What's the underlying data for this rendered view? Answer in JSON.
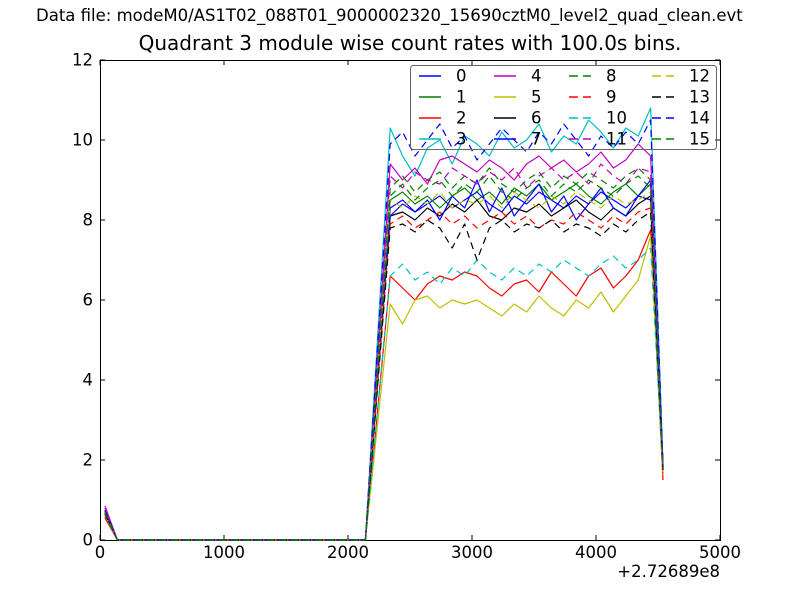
{
  "header": {
    "datafile": "Data file: modeM0/AS1T02_088T01_9000002320_15690cztM0_level2_quad_clean.evt"
  },
  "chart_data": {
    "type": "line",
    "title": "Quadrant 3 module wise count rates with 100.0s bins.",
    "xlabel": "",
    "ylabel": "",
    "x_offset_label": "+2.72689e8",
    "xlim": [
      0,
      5000
    ],
    "ylim": [
      0,
      12
    ],
    "xticks": [
      0,
      1000,
      2000,
      3000,
      4000,
      5000
    ],
    "yticks": [
      0,
      2,
      4,
      6,
      8,
      10,
      12
    ],
    "grid": false,
    "bin_seconds": 100,
    "legend_position": "upper right",
    "legend_columns": 4,
    "axis_color": "#000000",
    "legend_border_color": "#666666",
    "x_bins": {
      "spike_x": 40,
      "zero_start_x": 140,
      "zero_end_x": 2140,
      "zero_step": 100,
      "rise_x": 2240,
      "plateau_start_x": 2340,
      "plateau_step": 100,
      "end_x": 4540
    },
    "series": [
      {
        "label": "0",
        "color": "#0000ff",
        "dashed": false,
        "spike_y": 0.75,
        "end_y": 1.8,
        "plateau_y": [
          8.3,
          8.5,
          8.2,
          8.4,
          8.6,
          8.3,
          8.5,
          8.7,
          8.4,
          8.2,
          8.6,
          8.4,
          8.7,
          8.5,
          8.3,
          8.6,
          8.4,
          8.7,
          8.5,
          8.3,
          8.6,
          8.5
        ]
      },
      {
        "label": "1",
        "color": "#008000",
        "dashed": false,
        "spike_y": 0.7,
        "end_y": 1.85,
        "plateau_y": [
          8.5,
          8.7,
          8.4,
          8.6,
          8.3,
          8.6,
          8.8,
          8.5,
          8.7,
          8.4,
          8.8,
          8.6,
          8.9,
          8.5,
          8.7,
          8.9,
          8.6,
          8.4,
          8.7,
          8.9,
          8.6,
          8.9
        ]
      },
      {
        "label": "2",
        "color": "#ff0000",
        "dashed": false,
        "spike_y": 0.55,
        "end_y": 1.5,
        "plateau_y": [
          6.6,
          6.3,
          6.0,
          6.4,
          6.6,
          6.5,
          6.7,
          6.6,
          6.3,
          6.1,
          6.4,
          6.5,
          6.2,
          6.7,
          6.4,
          6.1,
          6.6,
          6.8,
          6.3,
          6.6,
          7.0,
          7.75
        ]
      },
      {
        "label": "3",
        "color": "#00bfbf",
        "dashed": false,
        "spike_y": 0.8,
        "end_y": 1.9,
        "plateau_y": [
          10.3,
          9.6,
          9.1,
          9.8,
          10.0,
          9.4,
          10.1,
          9.9,
          9.6,
          10.2,
          9.8,
          10.0,
          10.4,
          9.7,
          10.1,
          9.9,
          10.5,
          10.2,
          9.8,
          10.3,
          10.1,
          10.8
        ]
      },
      {
        "label": "4",
        "color": "#bf00bf",
        "dashed": false,
        "spike_y": 0.85,
        "end_y": 1.85,
        "plateau_y": [
          9.4,
          9.0,
          9.3,
          8.9,
          9.5,
          9.6,
          9.4,
          9.2,
          9.5,
          9.3,
          9.0,
          9.4,
          9.6,
          9.3,
          9.5,
          9.2,
          9.4,
          9.7,
          9.3,
          9.5,
          9.9,
          9.6
        ]
      },
      {
        "label": "5",
        "color": "#bfbf00",
        "dashed": false,
        "spike_y": 0.6,
        "end_y": 1.65,
        "plateau_y": [
          5.9,
          5.4,
          6.0,
          6.1,
          5.8,
          6.0,
          5.9,
          6.0,
          5.8,
          5.6,
          5.9,
          5.7,
          6.1,
          5.8,
          5.6,
          6.0,
          5.8,
          6.2,
          5.7,
          6.1,
          6.5,
          7.6
        ]
      },
      {
        "label": "6",
        "color": "#000000",
        "dashed": false,
        "spike_y": 0.65,
        "end_y": 1.8,
        "plateau_y": [
          8.1,
          8.2,
          8.0,
          8.3,
          8.1,
          8.4,
          8.2,
          8.5,
          8.1,
          8.0,
          8.3,
          8.2,
          8.4,
          8.1,
          8.3,
          8.5,
          8.2,
          8.0,
          8.3,
          8.1,
          8.4,
          8.6
        ]
      },
      {
        "label": "7",
        "color": "#0000ff",
        "dashed": false,
        "spike_y": 0.72,
        "end_y": 1.8,
        "plateau_y": [
          8.1,
          8.4,
          8.2,
          8.5,
          8.0,
          8.6,
          8.3,
          9.0,
          8.2,
          8.8,
          8.1,
          8.5,
          8.9,
          8.2,
          8.6,
          8.0,
          8.4,
          8.8,
          8.3,
          8.1,
          8.6,
          9.0
        ]
      },
      {
        "label": "8",
        "color": "#008000",
        "dashed": true,
        "spike_y": 0.68,
        "end_y": 1.85,
        "plateau_y": [
          8.8,
          9.1,
          8.7,
          9.0,
          9.2,
          8.8,
          9.1,
          8.9,
          9.3,
          8.9,
          8.7,
          9.0,
          9.2,
          8.8,
          9.1,
          8.9,
          9.2,
          9.0,
          8.8,
          9.1,
          9.3,
          9.0
        ]
      },
      {
        "label": "9",
        "color": "#ff0000",
        "dashed": true,
        "spike_y": 0.58,
        "end_y": 1.6,
        "plateau_y": [
          7.9,
          8.1,
          7.8,
          8.0,
          8.2,
          7.9,
          8.1,
          7.8,
          8.0,
          8.2,
          7.9,
          8.1,
          7.8,
          8.0,
          7.9,
          8.2,
          8.0,
          7.8,
          8.1,
          7.9,
          8.2,
          8.3
        ]
      },
      {
        "label": "10",
        "color": "#00bfbf",
        "dashed": true,
        "spike_y": 0.62,
        "end_y": 1.7,
        "plateau_y": [
          6.6,
          6.9,
          6.5,
          6.7,
          6.4,
          6.8,
          6.6,
          7.0,
          6.7,
          6.5,
          6.8,
          6.6,
          6.9,
          6.7,
          7.0,
          6.8,
          6.6,
          6.9,
          7.1,
          6.8,
          7.0,
          7.3
        ]
      },
      {
        "label": "11",
        "color": "#bf00bf",
        "dashed": true,
        "spike_y": 0.8,
        "end_y": 1.8,
        "plateau_y": [
          9.1,
          8.8,
          9.2,
          9.0,
          8.9,
          9.3,
          9.1,
          8.9,
          9.2,
          9.0,
          9.3,
          8.8,
          9.1,
          9.3,
          9.0,
          9.2,
          8.9,
          9.4,
          9.1,
          8.9,
          9.3,
          9.2
        ]
      },
      {
        "label": "12",
        "color": "#bfbf00",
        "dashed": true,
        "spike_y": 0.64,
        "end_y": 1.7,
        "plateau_y": [
          8.5,
          8.3,
          8.6,
          8.4,
          8.7,
          8.3,
          8.5,
          8.4,
          8.6,
          8.3,
          8.7,
          8.5,
          8.3,
          8.6,
          8.4,
          8.7,
          8.5,
          8.3,
          8.6,
          8.4,
          8.5,
          8.7
        ]
      },
      {
        "label": "13",
        "color": "#000000",
        "dashed": true,
        "spike_y": 0.66,
        "end_y": 1.75,
        "plateau_y": [
          7.8,
          7.9,
          7.7,
          8.0,
          7.8,
          7.3,
          7.9,
          7.0,
          7.8,
          8.0,
          7.7,
          7.9,
          7.8,
          8.0,
          7.7,
          7.9,
          7.8,
          7.6,
          7.9,
          7.7,
          8.0,
          8.2
        ]
      },
      {
        "label": "14",
        "color": "#0000ff",
        "dashed": true,
        "spike_y": 0.74,
        "end_y": 1.85,
        "plateau_y": [
          9.9,
          10.2,
          9.6,
          10.0,
          10.4,
          9.8,
          10.1,
          9.5,
          9.9,
          10.3,
          10.0,
          9.7,
          10.2,
          9.9,
          10.4,
          10.0,
          9.6,
          10.1,
          9.8,
          10.2,
          9.9,
          10.5
        ]
      },
      {
        "label": "15",
        "color": "#008000",
        "dashed": true,
        "spike_y": 0.7,
        "end_y": 1.8,
        "plateau_y": [
          8.6,
          8.9,
          8.5,
          8.8,
          9.0,
          8.6,
          8.9,
          8.7,
          9.1,
          8.7,
          8.5,
          8.8,
          9.0,
          8.6,
          8.9,
          8.7,
          9.0,
          8.8,
          8.6,
          8.9,
          9.1,
          8.8
        ]
      }
    ]
  }
}
